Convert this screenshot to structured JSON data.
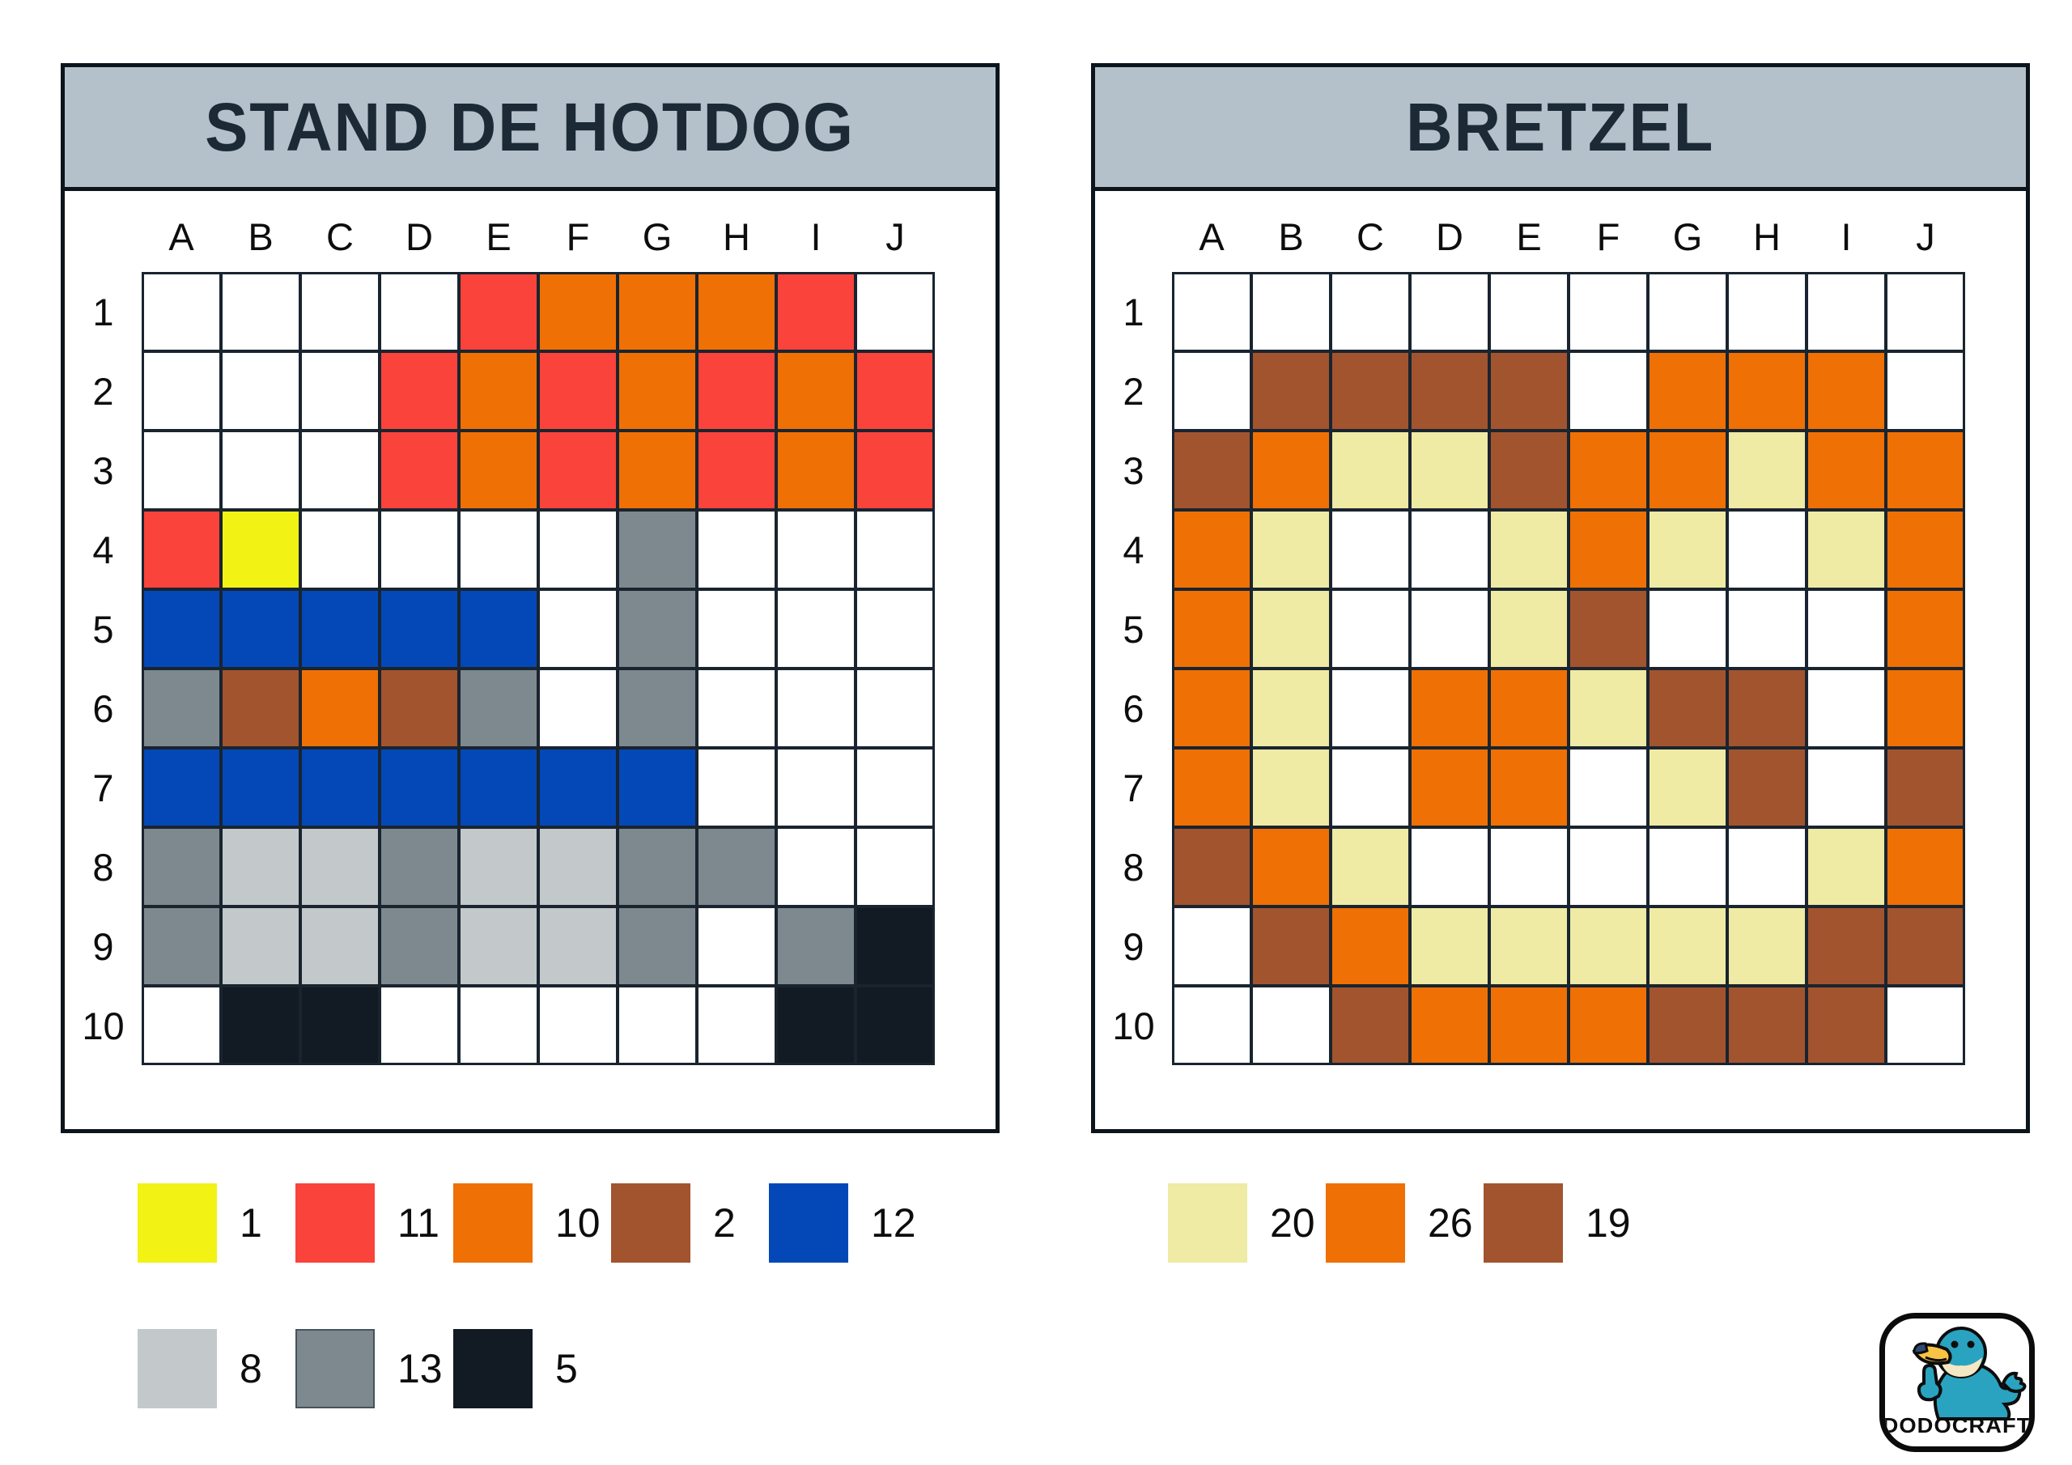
{
  "colors": {
    "header_bg": "#b4c1ca",
    "header_text": "#1c2a36",
    "grid_line": "#19242f",
    "panel_border": "#0c141c",
    "background": "#ffffff"
  },
  "palette": {
    "1": "#f2f215",
    "11": "#f9433b",
    "10": "#ef7004",
    "2": "#a2542f",
    "12": "#0448b8",
    "8": "#c3c8cb",
    "13": "#7d898f",
    "5": "#121a23",
    "20": "#efeaa4",
    "26": "#ef7004",
    "19": "#a2542f"
  },
  "panels": [
    {
      "title": "STAND DE HOTDOG",
      "columns": [
        "A",
        "B",
        "C",
        "D",
        "E",
        "F",
        "G",
        "H",
        "I",
        "J"
      ],
      "row_labels": [
        "1",
        "2",
        "3",
        "4",
        "5",
        "6",
        "7",
        "8",
        "9",
        "10"
      ],
      "cells": [
        [
          "",
          "",
          "",
          "",
          "11",
          "10",
          "10",
          "10",
          "11",
          ""
        ],
        [
          "",
          "",
          "",
          "11",
          "10",
          "11",
          "10",
          "11",
          "10",
          "11"
        ],
        [
          "",
          "",
          "",
          "11",
          "10",
          "11",
          "10",
          "11",
          "10",
          "11"
        ],
        [
          "11",
          "1",
          "",
          "",
          "",
          "",
          "13",
          "",
          "",
          ""
        ],
        [
          "12",
          "12",
          "12",
          "12",
          "12",
          "",
          "13",
          "",
          "",
          ""
        ],
        [
          "13",
          "2",
          "10",
          "2",
          "13",
          "",
          "13",
          "",
          "",
          ""
        ],
        [
          "12",
          "12",
          "12",
          "12",
          "12",
          "12",
          "12",
          "",
          "",
          ""
        ],
        [
          "13",
          "8",
          "8",
          "13",
          "8",
          "8",
          "13",
          "13",
          "",
          ""
        ],
        [
          "13",
          "8",
          "8",
          "13",
          "8",
          "8",
          "13",
          "",
          "13",
          "5"
        ],
        [
          "",
          "5",
          "5",
          "",
          "",
          "",
          "",
          "",
          "5",
          "5"
        ]
      ],
      "legend_rows": [
        [
          "1",
          "11",
          "10",
          "2",
          "12"
        ],
        [
          "8",
          "13",
          "5"
        ]
      ]
    },
    {
      "title": "BRETZEL",
      "columns": [
        "A",
        "B",
        "C",
        "D",
        "E",
        "F",
        "G",
        "H",
        "I",
        "J"
      ],
      "row_labels": [
        "1",
        "2",
        "3",
        "4",
        "5",
        "6",
        "7",
        "8",
        "9",
        "10"
      ],
      "cells": [
        [
          "",
          "",
          "",
          "",
          "",
          "",
          "",
          "",
          "",
          ""
        ],
        [
          "",
          "19",
          "19",
          "19",
          "19",
          "",
          "26",
          "26",
          "26",
          ""
        ],
        [
          "19",
          "26",
          "20",
          "20",
          "19",
          "26",
          "26",
          "20",
          "26",
          "26"
        ],
        [
          "26",
          "20",
          "",
          "",
          "20",
          "26",
          "20",
          "",
          "20",
          "26"
        ],
        [
          "26",
          "20",
          "",
          "",
          "20",
          "19",
          "",
          "",
          "",
          "26"
        ],
        [
          "26",
          "20",
          "",
          "26",
          "26",
          "20",
          "19",
          "19",
          "",
          "26"
        ],
        [
          "26",
          "20",
          "",
          "26",
          "26",
          "",
          "20",
          "19",
          "",
          "19"
        ],
        [
          "19",
          "26",
          "20",
          "",
          "",
          "",
          "",
          "",
          "20",
          "26"
        ],
        [
          "",
          "19",
          "26",
          "20",
          "20",
          "20",
          "20",
          "20",
          "19",
          "19"
        ],
        [
          "",
          "",
          "19",
          "26",
          "26",
          "26",
          "19",
          "19",
          "19",
          ""
        ]
      ],
      "legend_rows": [
        [
          "20",
          "26",
          "19"
        ]
      ]
    }
  ],
  "logo": {
    "text": "DODOCRAFT"
  }
}
